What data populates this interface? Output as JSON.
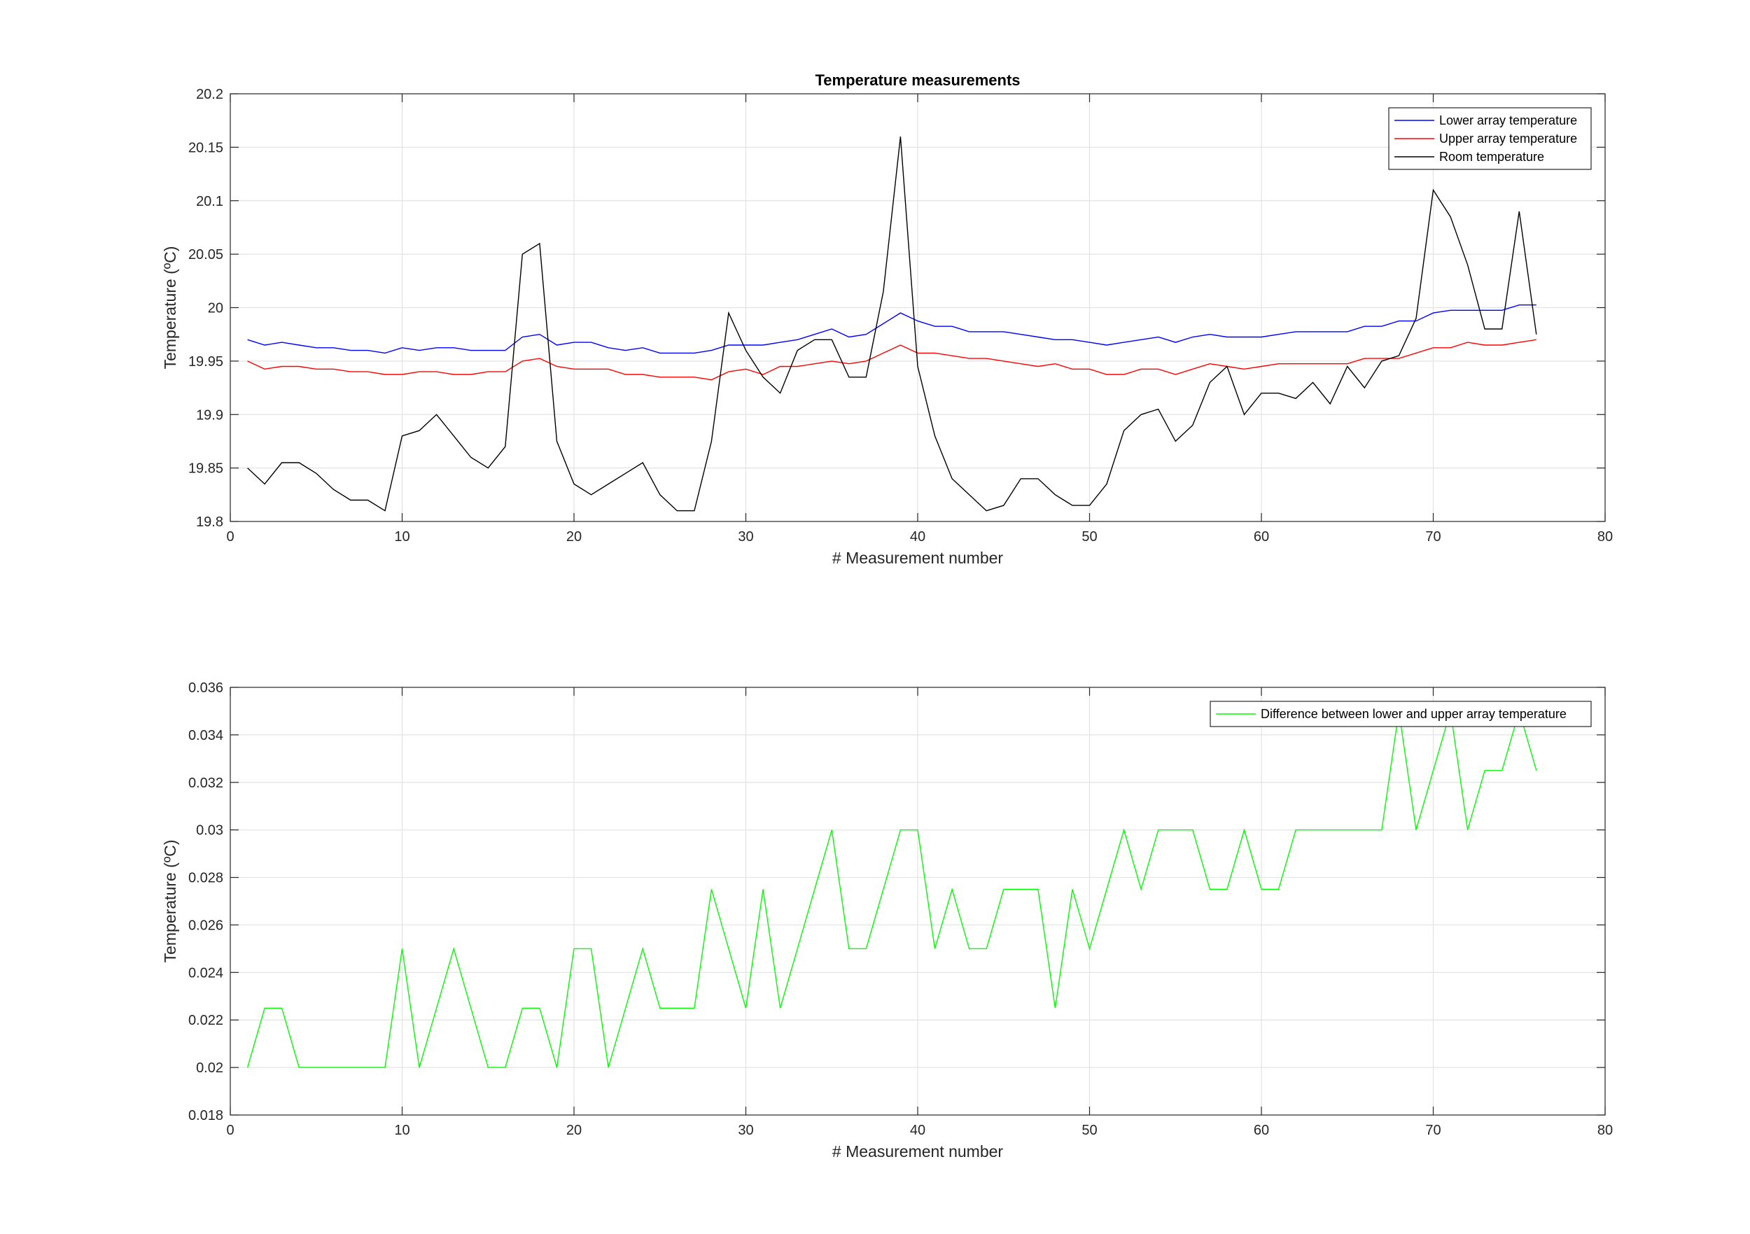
{
  "chart_data": [
    {
      "type": "line",
      "title": "Temperature measurements",
      "xlabel": "# Measurement number",
      "ylabel": "Temperature (ºC)",
      "xlim": [
        0,
        80
      ],
      "ylim": [
        19.8,
        20.2
      ],
      "xticks": [
        0,
        10,
        20,
        30,
        40,
        50,
        60,
        70,
        80
      ],
      "yticks": [
        19.8,
        19.85,
        19.9,
        19.95,
        20,
        20.05,
        20.1,
        20.15,
        20.2
      ],
      "xtick_labels": [
        "0",
        "10",
        "20",
        "30",
        "40",
        "50",
        "60",
        "70",
        "80"
      ],
      "ytick_labels": [
        "19.8",
        "19.85",
        "19.9",
        "19.95",
        "20",
        "20.05",
        "20.1",
        "20.15",
        "20.2"
      ],
      "grid": true,
      "legend_position": "top-right",
      "x": [
        1,
        2,
        3,
        4,
        5,
        6,
        7,
        8,
        9,
        10,
        11,
        12,
        13,
        14,
        15,
        16,
        17,
        18,
        19,
        20,
        21,
        22,
        23,
        24,
        25,
        26,
        27,
        28,
        29,
        30,
        31,
        32,
        33,
        34,
        35,
        36,
        37,
        38,
        39,
        40,
        41,
        42,
        43,
        44,
        45,
        46,
        47,
        48,
        49,
        50,
        51,
        52,
        53,
        54,
        55,
        56,
        57,
        58,
        59,
        60,
        61,
        62,
        63,
        64,
        65,
        66,
        67,
        68,
        69,
        70,
        71,
        72,
        73,
        74,
        75,
        76
      ],
      "series": [
        {
          "name": "Lower array temperature",
          "color": "#0000ff",
          "values": [
            19.97,
            19.965,
            19.9675,
            19.965,
            19.9625,
            19.9625,
            19.96,
            19.96,
            19.9575,
            19.9625,
            19.96,
            19.9625,
            19.9625,
            19.96,
            19.96,
            19.96,
            19.9725,
            19.975,
            19.965,
            19.9675,
            19.9675,
            19.9625,
            19.96,
            19.9625,
            19.9575,
            19.9575,
            19.9575,
            19.96,
            19.965,
            19.965,
            19.965,
            19.9675,
            19.97,
            19.975,
            19.98,
            19.9725,
            19.975,
            19.985,
            19.995,
            19.9875,
            19.9825,
            19.9825,
            19.9775,
            19.9775,
            19.9775,
            19.975,
            19.9725,
            19.97,
            19.97,
            19.9675,
            19.965,
            19.9675,
            19.97,
            19.9725,
            19.9675,
            19.9725,
            19.975,
            19.9725,
            19.9725,
            19.9725,
            19.975,
            19.9775,
            19.9775,
            19.9775,
            19.9775,
            19.9825,
            19.9825,
            19.9875,
            19.9875,
            19.995,
            19.9975,
            19.9975,
            19.9975,
            19.9975,
            20.0025,
            20.0025
          ]
        },
        {
          "name": "Upper array temperature",
          "color": "#ff0000",
          "values": [
            19.95,
            19.9425,
            19.945,
            19.945,
            19.9425,
            19.9425,
            19.94,
            19.94,
            19.9375,
            19.9375,
            19.94,
            19.94,
            19.9375,
            19.9375,
            19.94,
            19.94,
            19.95,
            19.9525,
            19.945,
            19.9425,
            19.9425,
            19.9425,
            19.9375,
            19.9375,
            19.935,
            19.935,
            19.935,
            19.9325,
            19.94,
            19.9425,
            19.9375,
            19.945,
            19.945,
            19.9475,
            19.95,
            19.9475,
            19.95,
            19.9575,
            19.965,
            19.9575,
            19.9575,
            19.955,
            19.9525,
            19.9525,
            19.95,
            19.9475,
            19.945,
            19.9475,
            19.9425,
            19.9425,
            19.9375,
            19.9375,
            19.9425,
            19.9425,
            19.9375,
            19.9425,
            19.9475,
            19.945,
            19.9425,
            19.945,
            19.9475,
            19.9475,
            19.9475,
            19.9475,
            19.9475,
            19.9525,
            19.9525,
            19.9525,
            19.9575,
            19.9625,
            19.9625,
            19.9675,
            19.965,
            19.965,
            19.9675,
            19.97
          ]
        },
        {
          "name": "Room temperature",
          "color": "#000000",
          "values": [
            19.85,
            19.835,
            19.855,
            19.855,
            19.845,
            19.83,
            19.82,
            19.82,
            19.81,
            19.88,
            19.885,
            19.9,
            19.88,
            19.86,
            19.85,
            19.87,
            20.05,
            20.06,
            19.875,
            19.835,
            19.825,
            19.835,
            19.845,
            19.855,
            19.825,
            19.81,
            19.81,
            19.875,
            19.995,
            19.96,
            19.935,
            19.92,
            19.96,
            19.97,
            19.97,
            19.935,
            19.935,
            20.015,
            20.16,
            19.945,
            19.88,
            19.84,
            19.825,
            19.81,
            19.815,
            19.84,
            19.84,
            19.825,
            19.815,
            19.815,
            19.835,
            19.885,
            19.9,
            19.905,
            19.875,
            19.89,
            19.93,
            19.945,
            19.9,
            19.92,
            19.92,
            19.915,
            19.93,
            19.91,
            19.945,
            19.925,
            19.95,
            19.955,
            19.99,
            20.11,
            20.085,
            20.04,
            19.98,
            19.98,
            20.09,
            19.975
          ]
        }
      ]
    },
    {
      "type": "line",
      "title": "",
      "xlabel": "# Measurement number",
      "ylabel": "Temperature (ºC)",
      "xlim": [
        0,
        80
      ],
      "ylim": [
        0.018,
        0.036
      ],
      "xticks": [
        0,
        10,
        20,
        30,
        40,
        50,
        60,
        70,
        80
      ],
      "yticks": [
        0.018,
        0.02,
        0.022,
        0.024,
        0.026,
        0.028,
        0.03,
        0.032,
        0.034,
        0.036
      ],
      "xtick_labels": [
        "0",
        "10",
        "20",
        "30",
        "40",
        "50",
        "60",
        "70",
        "80"
      ],
      "ytick_labels": [
        "0.018",
        "0.02",
        "0.022",
        "0.024",
        "0.026",
        "0.028",
        "0.03",
        "0.032",
        "0.034",
        "0.036"
      ],
      "grid": true,
      "legend_position": "top-right",
      "x": [
        1,
        2,
        3,
        4,
        5,
        6,
        7,
        8,
        9,
        10,
        11,
        12,
        13,
        14,
        15,
        16,
        17,
        18,
        19,
        20,
        21,
        22,
        23,
        24,
        25,
        26,
        27,
        28,
        29,
        30,
        31,
        32,
        33,
        34,
        35,
        36,
        37,
        38,
        39,
        40,
        41,
        42,
        43,
        44,
        45,
        46,
        47,
        48,
        49,
        50,
        51,
        52,
        53,
        54,
        55,
        56,
        57,
        58,
        59,
        60,
        61,
        62,
        63,
        64,
        65,
        66,
        67,
        68,
        69,
        70,
        71,
        72,
        73,
        74,
        75,
        76
      ],
      "series": [
        {
          "name": "Difference between lower and upper array temperature",
          "color": "#00ff00",
          "values": [
            0.02,
            0.0225,
            0.0225,
            0.02,
            0.02,
            0.02,
            0.02,
            0.02,
            0.02,
            0.025,
            0.02,
            0.0225,
            0.025,
            0.0225,
            0.02,
            0.02,
            0.0225,
            0.0225,
            0.02,
            0.025,
            0.025,
            0.02,
            0.0225,
            0.025,
            0.0225,
            0.0225,
            0.0225,
            0.0275,
            0.025,
            0.0225,
            0.0275,
            0.0225,
            0.025,
            0.0275,
            0.03,
            0.025,
            0.025,
            0.0275,
            0.03,
            0.03,
            0.025,
            0.0275,
            0.025,
            0.025,
            0.0275,
            0.0275,
            0.0275,
            0.0225,
            0.0275,
            0.025,
            0.0275,
            0.03,
            0.0275,
            0.03,
            0.03,
            0.03,
            0.0275,
            0.0275,
            0.03,
            0.0275,
            0.0275,
            0.03,
            0.03,
            0.03,
            0.03,
            0.03,
            0.03,
            0.035,
            0.03,
            0.0325,
            0.035,
            0.03,
            0.0325,
            0.0325,
            0.035,
            0.0325
          ]
        }
      ]
    }
  ]
}
